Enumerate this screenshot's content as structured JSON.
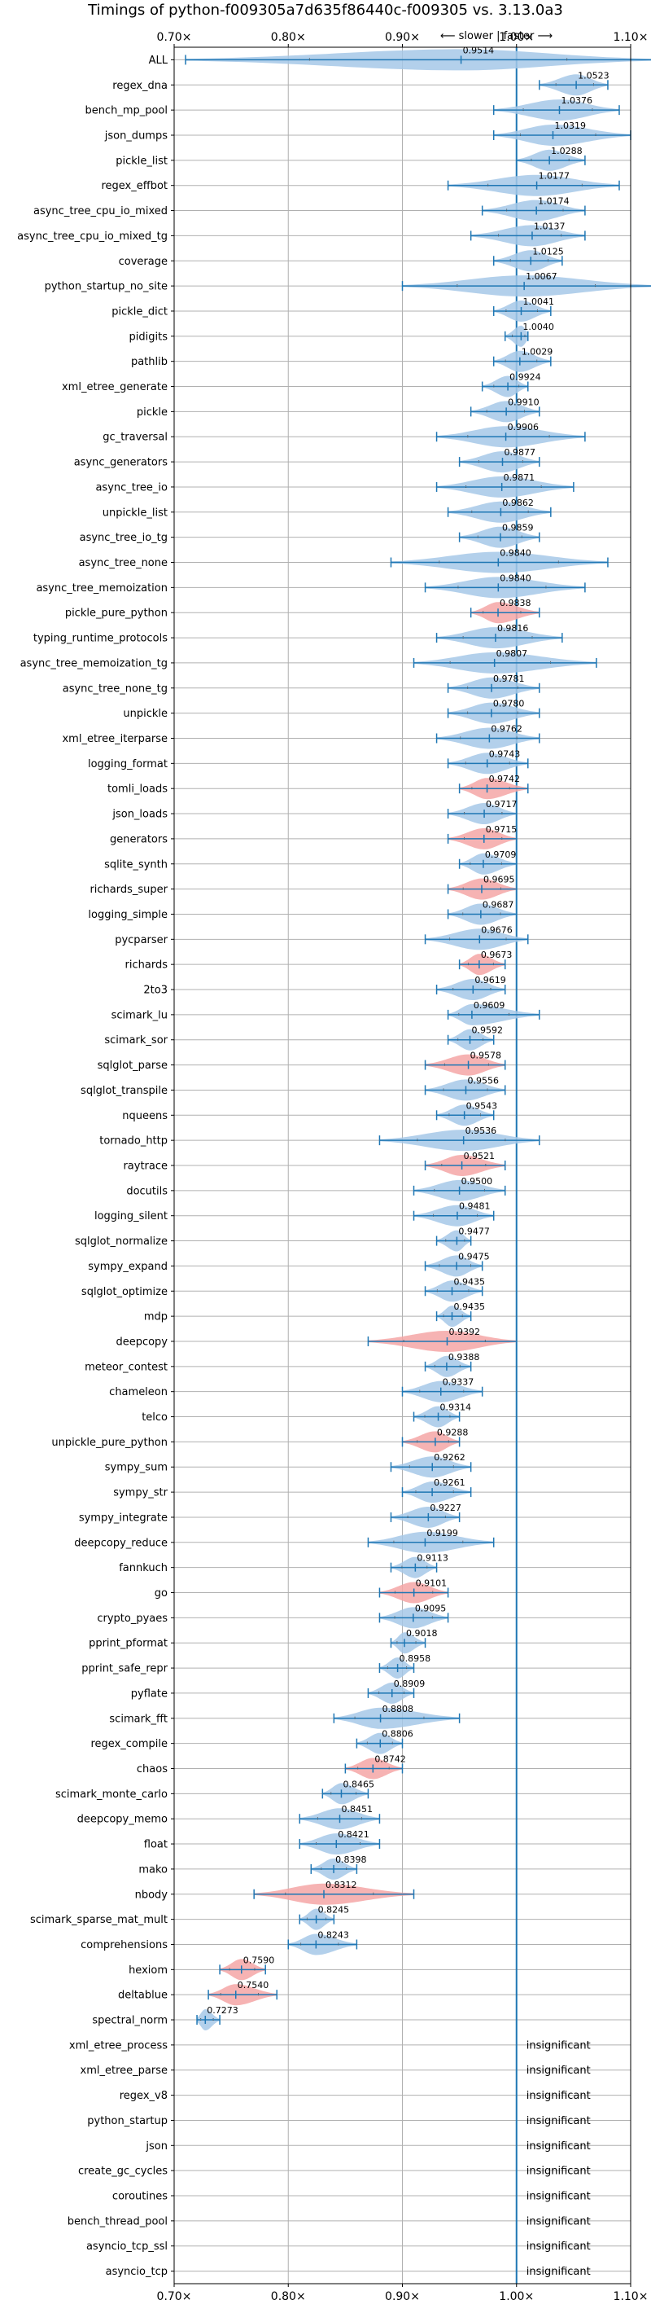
{
  "chart_data": {
    "type": "violin",
    "title": "Timings of python-f009305a7d635f86440c-f009305 vs. 3.13.0a3",
    "annotation": "⟵ slower | faster ⟶",
    "xlim": [
      0.7,
      1.1
    ],
    "x_ticks": [
      0.7,
      0.8,
      0.9,
      1.0,
      1.1
    ],
    "x_tick_labels": [
      "0.70×",
      "0.80×",
      "0.90×",
      "1.00×",
      "1.10×"
    ],
    "reference_line": 1.0,
    "grid": true,
    "colors": {
      "faster": "#a6c8e8",
      "slower": "#f4a6a6",
      "line": "#1f77b4",
      "grid": "#b0b0b0"
    },
    "insignificant_text": "insignificant",
    "benchmarks": [
      {
        "name": "ALL",
        "value": 0.9514,
        "label": "0.9514",
        "low": 0.71,
        "high": 1.12,
        "kind": "faster"
      },
      {
        "name": "regex_dna",
        "value": 1.0523,
        "label": "1.0523",
        "low": 1.02,
        "high": 1.08,
        "kind": "faster"
      },
      {
        "name": "bench_mp_pool",
        "value": 1.0376,
        "label": "1.0376",
        "low": 0.98,
        "high": 1.09,
        "kind": "faster"
      },
      {
        "name": "json_dumps",
        "value": 1.0319,
        "label": "1.0319",
        "low": 0.98,
        "high": 1.1,
        "kind": "faster"
      },
      {
        "name": "pickle_list",
        "value": 1.0288,
        "label": "1.0288",
        "low": 1.0,
        "high": 1.06,
        "kind": "faster"
      },
      {
        "name": "regex_effbot",
        "value": 1.0177,
        "label": "1.0177",
        "low": 0.94,
        "high": 1.09,
        "kind": "faster"
      },
      {
        "name": "async_tree_cpu_io_mixed",
        "value": 1.0174,
        "label": "1.0174",
        "low": 0.97,
        "high": 1.06,
        "kind": "faster"
      },
      {
        "name": "async_tree_cpu_io_mixed_tg",
        "value": 1.0137,
        "label": "1.0137",
        "low": 0.96,
        "high": 1.06,
        "kind": "faster"
      },
      {
        "name": "coverage",
        "value": 1.0125,
        "label": "1.0125",
        "low": 0.98,
        "high": 1.04,
        "kind": "faster"
      },
      {
        "name": "python_startup_no_site",
        "value": 1.0067,
        "label": "1.0067",
        "low": 0.9,
        "high": 1.12,
        "kind": "faster"
      },
      {
        "name": "pickle_dict",
        "value": 1.0041,
        "label": "1.0041",
        "low": 0.98,
        "high": 1.03,
        "kind": "faster"
      },
      {
        "name": "pidigits",
        "value": 1.004,
        "label": "1.0040",
        "low": 0.99,
        "high": 1.01,
        "kind": "faster"
      },
      {
        "name": "pathlib",
        "value": 1.0029,
        "label": "1.0029",
        "low": 0.98,
        "high": 1.03,
        "kind": "faster"
      },
      {
        "name": "xml_etree_generate",
        "value": 0.9924,
        "label": "0.9924",
        "low": 0.97,
        "high": 1.01,
        "kind": "faster"
      },
      {
        "name": "pickle",
        "value": 0.991,
        "label": "0.9910",
        "low": 0.96,
        "high": 1.02,
        "kind": "faster"
      },
      {
        "name": "gc_traversal",
        "value": 0.9906,
        "label": "0.9906",
        "low": 0.93,
        "high": 1.06,
        "kind": "faster"
      },
      {
        "name": "async_generators",
        "value": 0.9877,
        "label": "0.9877",
        "low": 0.95,
        "high": 1.02,
        "kind": "faster"
      },
      {
        "name": "async_tree_io",
        "value": 0.9871,
        "label": "0.9871",
        "low": 0.93,
        "high": 1.05,
        "kind": "faster"
      },
      {
        "name": "unpickle_list",
        "value": 0.9862,
        "label": "0.9862",
        "low": 0.94,
        "high": 1.03,
        "kind": "faster"
      },
      {
        "name": "async_tree_io_tg",
        "value": 0.9859,
        "label": "0.9859",
        "low": 0.95,
        "high": 1.02,
        "kind": "faster"
      },
      {
        "name": "async_tree_none",
        "value": 0.984,
        "label": "0.9840",
        "low": 0.89,
        "high": 1.08,
        "kind": "faster"
      },
      {
        "name": "async_tree_memoization",
        "value": 0.984,
        "label": "0.9840",
        "low": 0.92,
        "high": 1.06,
        "kind": "faster"
      },
      {
        "name": "pickle_pure_python",
        "value": 0.9838,
        "label": "0.9838",
        "low": 0.96,
        "high": 1.02,
        "kind": "slower"
      },
      {
        "name": "typing_runtime_protocols",
        "value": 0.9816,
        "label": "0.9816",
        "low": 0.93,
        "high": 1.04,
        "kind": "faster"
      },
      {
        "name": "async_tree_memoization_tg",
        "value": 0.9807,
        "label": "0.9807",
        "low": 0.91,
        "high": 1.07,
        "kind": "faster"
      },
      {
        "name": "async_tree_none_tg",
        "value": 0.9781,
        "label": "0.9781",
        "low": 0.94,
        "high": 1.02,
        "kind": "faster"
      },
      {
        "name": "unpickle",
        "value": 0.978,
        "label": "0.9780",
        "low": 0.94,
        "high": 1.02,
        "kind": "faster"
      },
      {
        "name": "xml_etree_iterparse",
        "value": 0.9762,
        "label": "0.9762",
        "low": 0.93,
        "high": 1.02,
        "kind": "faster"
      },
      {
        "name": "logging_format",
        "value": 0.9743,
        "label": "0.9743",
        "low": 0.94,
        "high": 1.01,
        "kind": "faster"
      },
      {
        "name": "tomli_loads",
        "value": 0.9742,
        "label": "0.9742",
        "low": 0.95,
        "high": 1.01,
        "kind": "slower"
      },
      {
        "name": "json_loads",
        "value": 0.9717,
        "label": "0.9717",
        "low": 0.94,
        "high": 1.0,
        "kind": "faster"
      },
      {
        "name": "generators",
        "value": 0.9715,
        "label": "0.9715",
        "low": 0.94,
        "high": 1.0,
        "kind": "slower"
      },
      {
        "name": "sqlite_synth",
        "value": 0.9709,
        "label": "0.9709",
        "low": 0.95,
        "high": 1.0,
        "kind": "faster"
      },
      {
        "name": "richards_super",
        "value": 0.9695,
        "label": "0.9695",
        "low": 0.94,
        "high": 1.0,
        "kind": "slower"
      },
      {
        "name": "logging_simple",
        "value": 0.9687,
        "label": "0.9687",
        "low": 0.94,
        "high": 1.0,
        "kind": "faster"
      },
      {
        "name": "pycparser",
        "value": 0.9676,
        "label": "0.9676",
        "low": 0.92,
        "high": 1.01,
        "kind": "faster"
      },
      {
        "name": "richards",
        "value": 0.9673,
        "label": "0.9673",
        "low": 0.95,
        "high": 0.99,
        "kind": "slower"
      },
      {
        "name": "2to3",
        "value": 0.9619,
        "label": "0.9619",
        "low": 0.93,
        "high": 0.99,
        "kind": "faster"
      },
      {
        "name": "scimark_lu",
        "value": 0.9609,
        "label": "0.9609",
        "low": 0.94,
        "high": 1.02,
        "kind": "faster"
      },
      {
        "name": "scimark_sor",
        "value": 0.9592,
        "label": "0.9592",
        "low": 0.94,
        "high": 0.98,
        "kind": "faster"
      },
      {
        "name": "sqlglot_parse",
        "value": 0.9578,
        "label": "0.9578",
        "low": 0.92,
        "high": 0.99,
        "kind": "slower"
      },
      {
        "name": "sqlglot_transpile",
        "value": 0.9556,
        "label": "0.9556",
        "low": 0.92,
        "high": 0.99,
        "kind": "faster"
      },
      {
        "name": "nqueens",
        "value": 0.9543,
        "label": "0.9543",
        "low": 0.93,
        "high": 0.98,
        "kind": "faster"
      },
      {
        "name": "tornado_http",
        "value": 0.9536,
        "label": "0.9536",
        "low": 0.88,
        "high": 1.02,
        "kind": "faster"
      },
      {
        "name": "raytrace",
        "value": 0.9521,
        "label": "0.9521",
        "low": 0.92,
        "high": 0.99,
        "kind": "slower"
      },
      {
        "name": "docutils",
        "value": 0.95,
        "label": "0.9500",
        "low": 0.91,
        "high": 0.99,
        "kind": "faster"
      },
      {
        "name": "logging_silent",
        "value": 0.9481,
        "label": "0.9481",
        "low": 0.91,
        "high": 0.98,
        "kind": "faster"
      },
      {
        "name": "sqlglot_normalize",
        "value": 0.9477,
        "label": "0.9477",
        "low": 0.93,
        "high": 0.96,
        "kind": "faster"
      },
      {
        "name": "sympy_expand",
        "value": 0.9475,
        "label": "0.9475",
        "low": 0.92,
        "high": 0.97,
        "kind": "faster"
      },
      {
        "name": "sqlglot_optimize",
        "value": 0.9435,
        "label": "0.9435",
        "low": 0.92,
        "high": 0.97,
        "kind": "faster"
      },
      {
        "name": "mdp",
        "value": 0.9435,
        "label": "0.9435",
        "low": 0.93,
        "high": 0.96,
        "kind": "faster"
      },
      {
        "name": "deepcopy",
        "value": 0.9392,
        "label": "0.9392",
        "low": 0.87,
        "high": 1.0,
        "kind": "slower"
      },
      {
        "name": "meteor_contest",
        "value": 0.9388,
        "label": "0.9388",
        "low": 0.92,
        "high": 0.96,
        "kind": "faster"
      },
      {
        "name": "chameleon",
        "value": 0.9337,
        "label": "0.9337",
        "low": 0.9,
        "high": 0.97,
        "kind": "faster"
      },
      {
        "name": "telco",
        "value": 0.9314,
        "label": "0.9314",
        "low": 0.91,
        "high": 0.95,
        "kind": "faster"
      },
      {
        "name": "unpickle_pure_python",
        "value": 0.9288,
        "label": "0.9288",
        "low": 0.9,
        "high": 0.95,
        "kind": "slower"
      },
      {
        "name": "sympy_sum",
        "value": 0.9262,
        "label": "0.9262",
        "low": 0.89,
        "high": 0.96,
        "kind": "faster"
      },
      {
        "name": "sympy_str",
        "value": 0.9261,
        "label": "0.9261",
        "low": 0.9,
        "high": 0.96,
        "kind": "faster"
      },
      {
        "name": "sympy_integrate",
        "value": 0.9227,
        "label": "0.9227",
        "low": 0.89,
        "high": 0.95,
        "kind": "faster"
      },
      {
        "name": "deepcopy_reduce",
        "value": 0.9199,
        "label": "0.9199",
        "low": 0.87,
        "high": 0.98,
        "kind": "faster"
      },
      {
        "name": "fannkuch",
        "value": 0.9113,
        "label": "0.9113",
        "low": 0.89,
        "high": 0.93,
        "kind": "faster"
      },
      {
        "name": "go",
        "value": 0.9101,
        "label": "0.9101",
        "low": 0.88,
        "high": 0.94,
        "kind": "slower"
      },
      {
        "name": "crypto_pyaes",
        "value": 0.9095,
        "label": "0.9095",
        "low": 0.88,
        "high": 0.94,
        "kind": "faster"
      },
      {
        "name": "pprint_pformat",
        "value": 0.9018,
        "label": "0.9018",
        "low": 0.89,
        "high": 0.92,
        "kind": "faster"
      },
      {
        "name": "pprint_safe_repr",
        "value": 0.8958,
        "label": "0.8958",
        "low": 0.88,
        "high": 0.91,
        "kind": "faster"
      },
      {
        "name": "pyflate",
        "value": 0.8909,
        "label": "0.8909",
        "low": 0.87,
        "high": 0.91,
        "kind": "faster"
      },
      {
        "name": "scimark_fft",
        "value": 0.8808,
        "label": "0.8808",
        "low": 0.84,
        "high": 0.95,
        "kind": "faster"
      },
      {
        "name": "regex_compile",
        "value": 0.8806,
        "label": "0.8806",
        "low": 0.86,
        "high": 0.9,
        "kind": "faster"
      },
      {
        "name": "chaos",
        "value": 0.8742,
        "label": "0.8742",
        "low": 0.85,
        "high": 0.9,
        "kind": "slower"
      },
      {
        "name": "scimark_monte_carlo",
        "value": 0.8465,
        "label": "0.8465",
        "low": 0.83,
        "high": 0.87,
        "kind": "faster"
      },
      {
        "name": "deepcopy_memo",
        "value": 0.8451,
        "label": "0.8451",
        "low": 0.81,
        "high": 0.88,
        "kind": "faster"
      },
      {
        "name": "float",
        "value": 0.8421,
        "label": "0.8421",
        "low": 0.81,
        "high": 0.88,
        "kind": "faster"
      },
      {
        "name": "mako",
        "value": 0.8398,
        "label": "0.8398",
        "low": 0.82,
        "high": 0.86,
        "kind": "faster"
      },
      {
        "name": "nbody",
        "value": 0.8312,
        "label": "0.8312",
        "low": 0.77,
        "high": 0.91,
        "kind": "slower"
      },
      {
        "name": "scimark_sparse_mat_mult",
        "value": 0.8245,
        "label": "0.8245",
        "low": 0.81,
        "high": 0.84,
        "kind": "faster"
      },
      {
        "name": "comprehensions",
        "value": 0.8243,
        "label": "0.8243",
        "low": 0.8,
        "high": 0.86,
        "kind": "faster"
      },
      {
        "name": "hexiom",
        "value": 0.759,
        "label": "0.7590",
        "low": 0.74,
        "high": 0.78,
        "kind": "slower"
      },
      {
        "name": "deltablue",
        "value": 0.754,
        "label": "0.7540",
        "low": 0.73,
        "high": 0.79,
        "kind": "slower"
      },
      {
        "name": "spectral_norm",
        "value": 0.7273,
        "label": "0.7273",
        "low": 0.72,
        "high": 0.74,
        "kind": "faster"
      },
      {
        "name": "xml_etree_process",
        "kind": "insignificant"
      },
      {
        "name": "xml_etree_parse",
        "kind": "insignificant"
      },
      {
        "name": "regex_v8",
        "kind": "insignificant"
      },
      {
        "name": "python_startup",
        "kind": "insignificant"
      },
      {
        "name": "json",
        "kind": "insignificant"
      },
      {
        "name": "create_gc_cycles",
        "kind": "insignificant"
      },
      {
        "name": "coroutines",
        "kind": "insignificant"
      },
      {
        "name": "bench_thread_pool",
        "kind": "insignificant"
      },
      {
        "name": "asyncio_tcp_ssl",
        "kind": "insignificant"
      },
      {
        "name": "asyncio_tcp",
        "kind": "insignificant"
      }
    ]
  }
}
